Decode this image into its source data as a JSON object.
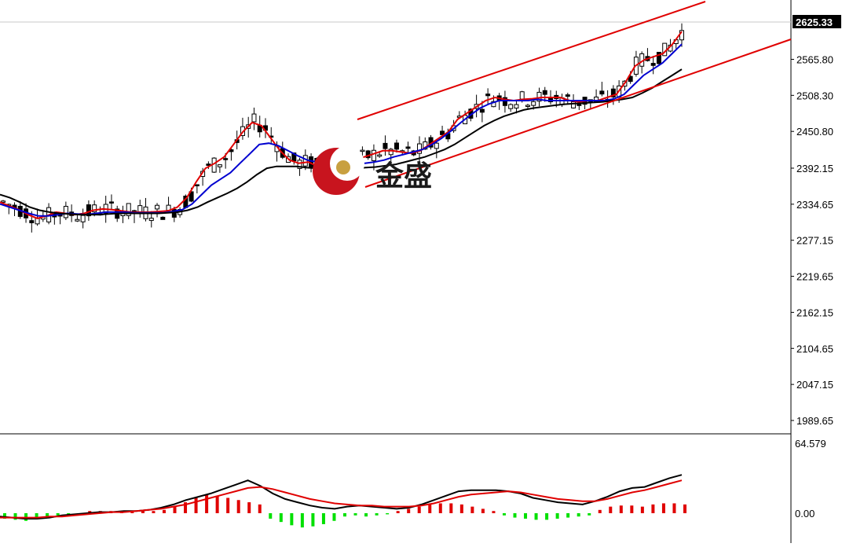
{
  "chart_data": [
    {
      "type": "candlestick",
      "title": "",
      "current_price": "2625.33",
      "y_ticks": [
        "2625.33",
        "2565.80",
        "2508.30",
        "2450.80",
        "2392.15",
        "2334.65",
        "2277.15",
        "2219.65",
        "2162.15",
        "2104.65",
        "2047.15",
        "1989.65"
      ],
      "y_tick_values": [
        2565.8,
        2508.3,
        2450.8,
        2392.15,
        2334.65,
        2277.15,
        2219.65,
        2162.15,
        2104.65,
        2047.15,
        1989.65
      ],
      "ylim": [
        1970,
        2640
      ],
      "moving_averages": [
        {
          "color": "#e00000",
          "values": [
            2338,
            2332,
            2326,
            2318,
            2312,
            2316,
            2322,
            2320,
            2318,
            2320,
            2325,
            2327,
            2326,
            2324,
            2322,
            2322,
            2322,
            2323,
            2324,
            2330,
            2345,
            2370,
            2392,
            2400,
            2410,
            2430,
            2450,
            2465,
            2460,
            2440,
            2420,
            2405,
            2400,
            2402,
            2395,
            2390,
            2395,
            2400,
            2405,
            2410,
            2415,
            2420,
            2420,
            2418,
            2416,
            2420,
            2430,
            2440,
            2450,
            2470,
            2480,
            2490,
            2500,
            2505,
            2502,
            2500,
            2502,
            2503,
            2505,
            2505,
            2505,
            2500,
            2498,
            2500,
            2500,
            2505,
            2510,
            2530,
            2555,
            2565,
            2570,
            2575,
            2590,
            2610
          ]
        },
        {
          "color": "#0000d0",
          "values": [
            2335,
            2330,
            2325,
            2320,
            2316,
            2316,
            2318,
            2320,
            2319,
            2318,
            2320,
            2322,
            2322,
            2322,
            2321,
            2321,
            2321,
            2321,
            2323,
            2326,
            2335,
            2350,
            2365,
            2375,
            2385,
            2400,
            2415,
            2430,
            2432,
            2428,
            2420,
            2412,
            2405,
            2402,
            2400,
            2398,
            2398,
            2400,
            2400,
            2402,
            2405,
            2410,
            2414,
            2418,
            2422,
            2430,
            2440,
            2452,
            2465,
            2477,
            2488,
            2495,
            2500,
            2500,
            2500,
            2500,
            2502,
            2500,
            2500,
            2500,
            2500,
            2500,
            2500,
            2500,
            2503,
            2510,
            2525,
            2540,
            2550,
            2560,
            2575,
            2590
          ]
        },
        {
          "color": "#000000",
          "values": [
            2350,
            2345,
            2338,
            2330,
            2325,
            2322,
            2320,
            2319,
            2318,
            2318,
            2318,
            2319,
            2320,
            2320,
            2320,
            2320,
            2320,
            2321,
            2322,
            2325,
            2330,
            2338,
            2345,
            2352,
            2360,
            2370,
            2382,
            2392,
            2395,
            2395,
            2395,
            2393,
            2392,
            2392,
            2392,
            2392,
            2392,
            2393,
            2394,
            2396,
            2398,
            2402,
            2406,
            2410,
            2416,
            2422,
            2430,
            2440,
            2450,
            2460,
            2468,
            2475,
            2480,
            2485,
            2488,
            2490,
            2492,
            2494,
            2495,
            2496,
            2497,
            2498,
            2500,
            2502,
            2505,
            2512,
            2520,
            2530,
            2540,
            2550
          ]
        }
      ]
    },
    {
      "type": "macd",
      "max_label": "64.579",
      "zero_label": "0.00",
      "histogram": [
        -5,
        -6,
        -7,
        -5,
        -3,
        -2,
        -1,
        0,
        2,
        2,
        2,
        1,
        1,
        2,
        2,
        3,
        6,
        10,
        14,
        17,
        16,
        14,
        12,
        10,
        8,
        -5,
        -8,
        -11,
        -13,
        -12,
        -10,
        -7,
        -3,
        -2,
        -3,
        -2,
        -1,
        2,
        4,
        6,
        8,
        9,
        9,
        8,
        6,
        4,
        2,
        -2,
        -4,
        -5,
        -6,
        -6,
        -5,
        -4,
        -3,
        -2,
        3,
        6,
        7,
        7,
        6,
        8,
        9,
        9,
        8
      ],
      "macd_line": [
        -3,
        -4,
        -5,
        -5,
        -4,
        -2,
        -1,
        0,
        1,
        1,
        2,
        2,
        3,
        5,
        8,
        12,
        15,
        18,
        22,
        26,
        30,
        25,
        18,
        13,
        10,
        7,
        5,
        4,
        6,
        7,
        6,
        5,
        4,
        5,
        8,
        12,
        16,
        20,
        21,
        21,
        21,
        20,
        18,
        14,
        12,
        10,
        9,
        8,
        11,
        15,
        20,
        23,
        24,
        28,
        32,
        35
      ],
      "signal_line": [
        -4,
        -4,
        -4,
        -4,
        -3,
        -3,
        -2,
        -1,
        0,
        1,
        1,
        2,
        3,
        4,
        6,
        8,
        11,
        14,
        17,
        20,
        23,
        24,
        22,
        19,
        16,
        13,
        11,
        9,
        8,
        7,
        7,
        6,
        6,
        6,
        7,
        9,
        12,
        15,
        17,
        18,
        19,
        20,
        19,
        17,
        15,
        13,
        12,
        11,
        11,
        13,
        16,
        19,
        21,
        24,
        27,
        30
      ]
    }
  ],
  "logo": {
    "text": "金盛"
  }
}
